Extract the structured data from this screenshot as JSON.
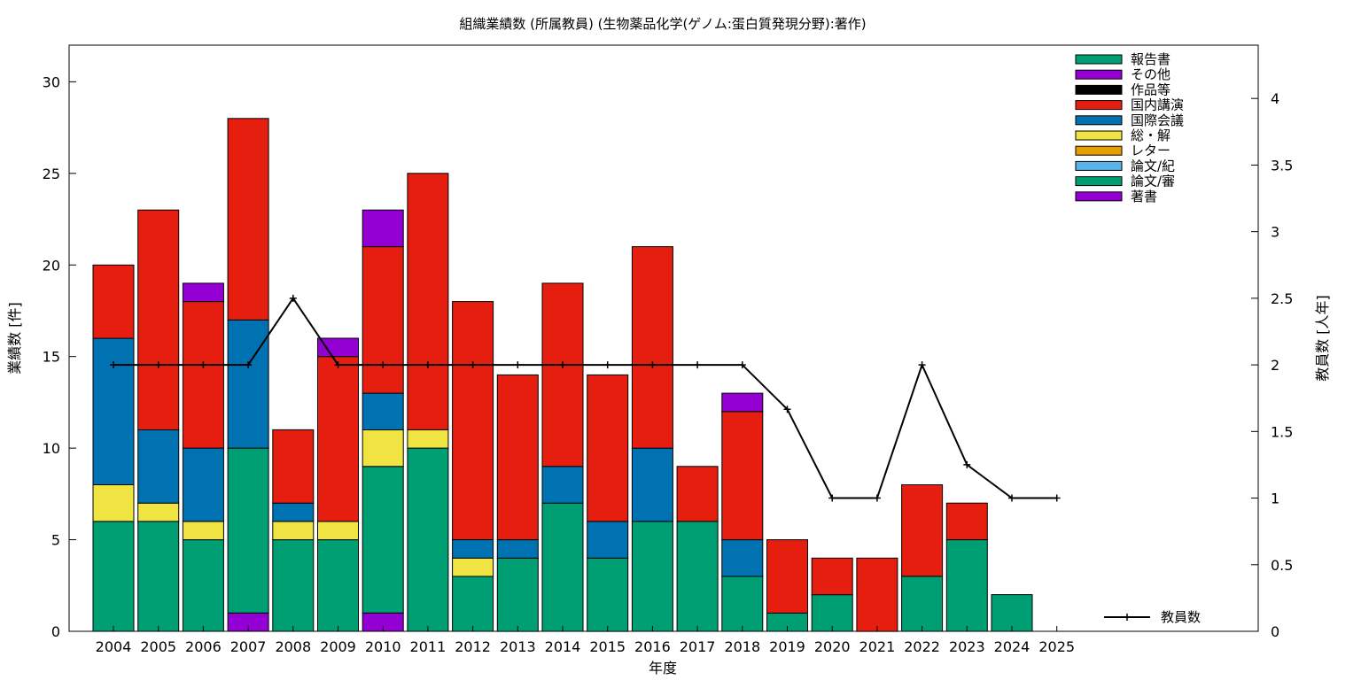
{
  "chart_data": {
    "type": "bar",
    "stacked": true,
    "title": "組織業績数 (所属教員) (生物薬品化学(ゲノム:蛋白質発現分野):著作)",
    "xlabel": "年度",
    "ylabel": "業績数 [件]",
    "y2label": "教員数 [人年]",
    "ylim": [
      0,
      32
    ],
    "y2lim": [
      0,
      4.4
    ],
    "yticks": [
      "0",
      "5",
      "10",
      "15",
      "20",
      "25",
      "30"
    ],
    "y2ticks": [
      "0",
      "0.5",
      "1",
      "1.5",
      "2",
      "2.5",
      "3",
      "3.5",
      "4"
    ],
    "grid": false,
    "legend_position": "top-right",
    "categories": [
      "2004",
      "2005",
      "2006",
      "2007",
      "2008",
      "2009",
      "2010",
      "2011",
      "2012",
      "2013",
      "2014",
      "2015",
      "2016",
      "2017",
      "2018",
      "2019",
      "2020",
      "2021",
      "2022",
      "2023",
      "2024",
      "2025"
    ],
    "series": [
      {
        "name": "著書",
        "color": "#9400d3",
        "values": [
          0,
          0,
          0,
          1,
          0,
          0,
          1,
          0,
          0,
          0,
          0,
          0,
          0,
          0,
          0,
          0,
          0,
          0,
          0,
          0,
          0,
          0
        ]
      },
      {
        "name": "論文/審",
        "color": "#009e73",
        "values": [
          6,
          6,
          5,
          9,
          5,
          5,
          8,
          10,
          3,
          4,
          7,
          4,
          6,
          6,
          3,
          1,
          2,
          0,
          3,
          5,
          2,
          0
        ]
      },
      {
        "name": "論文/紀",
        "color": "#56b4e9",
        "values": [
          0,
          0,
          0,
          0,
          0,
          0,
          0,
          0,
          0,
          0,
          0,
          0,
          0,
          0,
          0,
          0,
          0,
          0,
          0,
          0,
          0,
          0
        ]
      },
      {
        "name": "レター",
        "color": "#e69f00",
        "values": [
          0,
          0,
          0,
          0,
          0,
          0,
          0,
          0,
          0,
          0,
          0,
          0,
          0,
          0,
          0,
          0,
          0,
          0,
          0,
          0,
          0,
          0
        ]
      },
      {
        "name": "総・解",
        "color": "#f0e442",
        "values": [
          2,
          1,
          1,
          0,
          1,
          1,
          2,
          1,
          1,
          0,
          0,
          0,
          0,
          0,
          0,
          0,
          0,
          0,
          0,
          0,
          0,
          0
        ]
      },
      {
        "name": "国際会議",
        "color": "#0072b2",
        "values": [
          8,
          4,
          4,
          7,
          1,
          0,
          2,
          0,
          1,
          1,
          2,
          2,
          4,
          0,
          2,
          0,
          0,
          0,
          0,
          0,
          0,
          0
        ]
      },
      {
        "name": "国内講演",
        "color": "#e51e10",
        "values": [
          4,
          12,
          8,
          11,
          4,
          9,
          8,
          14,
          13,
          9,
          10,
          8,
          11,
          3,
          7,
          4,
          2,
          4,
          5,
          2,
          0,
          0
        ]
      },
      {
        "name": "作品等",
        "color": "#000000",
        "values": [
          0,
          0,
          0,
          0,
          0,
          0,
          0,
          0,
          0,
          0,
          0,
          0,
          0,
          0,
          0,
          0,
          0,
          0,
          0,
          0,
          0,
          0
        ]
      },
      {
        "name": "その他",
        "color": "#9400d3",
        "values": [
          0,
          0,
          1,
          0,
          0,
          1,
          2,
          0,
          0,
          0,
          0,
          0,
          0,
          0,
          1,
          0,
          0,
          0,
          0,
          0,
          0,
          0
        ]
      },
      {
        "name": "報告書",
        "color": "#009e73",
        "values": [
          0,
          0,
          0,
          0,
          0,
          0,
          0,
          0,
          0,
          0,
          0,
          0,
          0,
          0,
          0,
          0,
          0,
          0,
          0,
          0,
          0,
          0
        ]
      }
    ],
    "legend_order": [
      "報告書",
      "その他",
      "作品等",
      "国内講演",
      "国際会議",
      "総・解",
      "レター",
      "論文/紀",
      "論文/審",
      "著書"
    ],
    "line_series": {
      "name": "教員数",
      "axis": "y2",
      "color": "#000000",
      "values": [
        2,
        2,
        2,
        2,
        2.5,
        2,
        2,
        2,
        2,
        2,
        2,
        2,
        2,
        2,
        2,
        1.667,
        1,
        1,
        2,
        1.25,
        1,
        1
      ]
    }
  }
}
